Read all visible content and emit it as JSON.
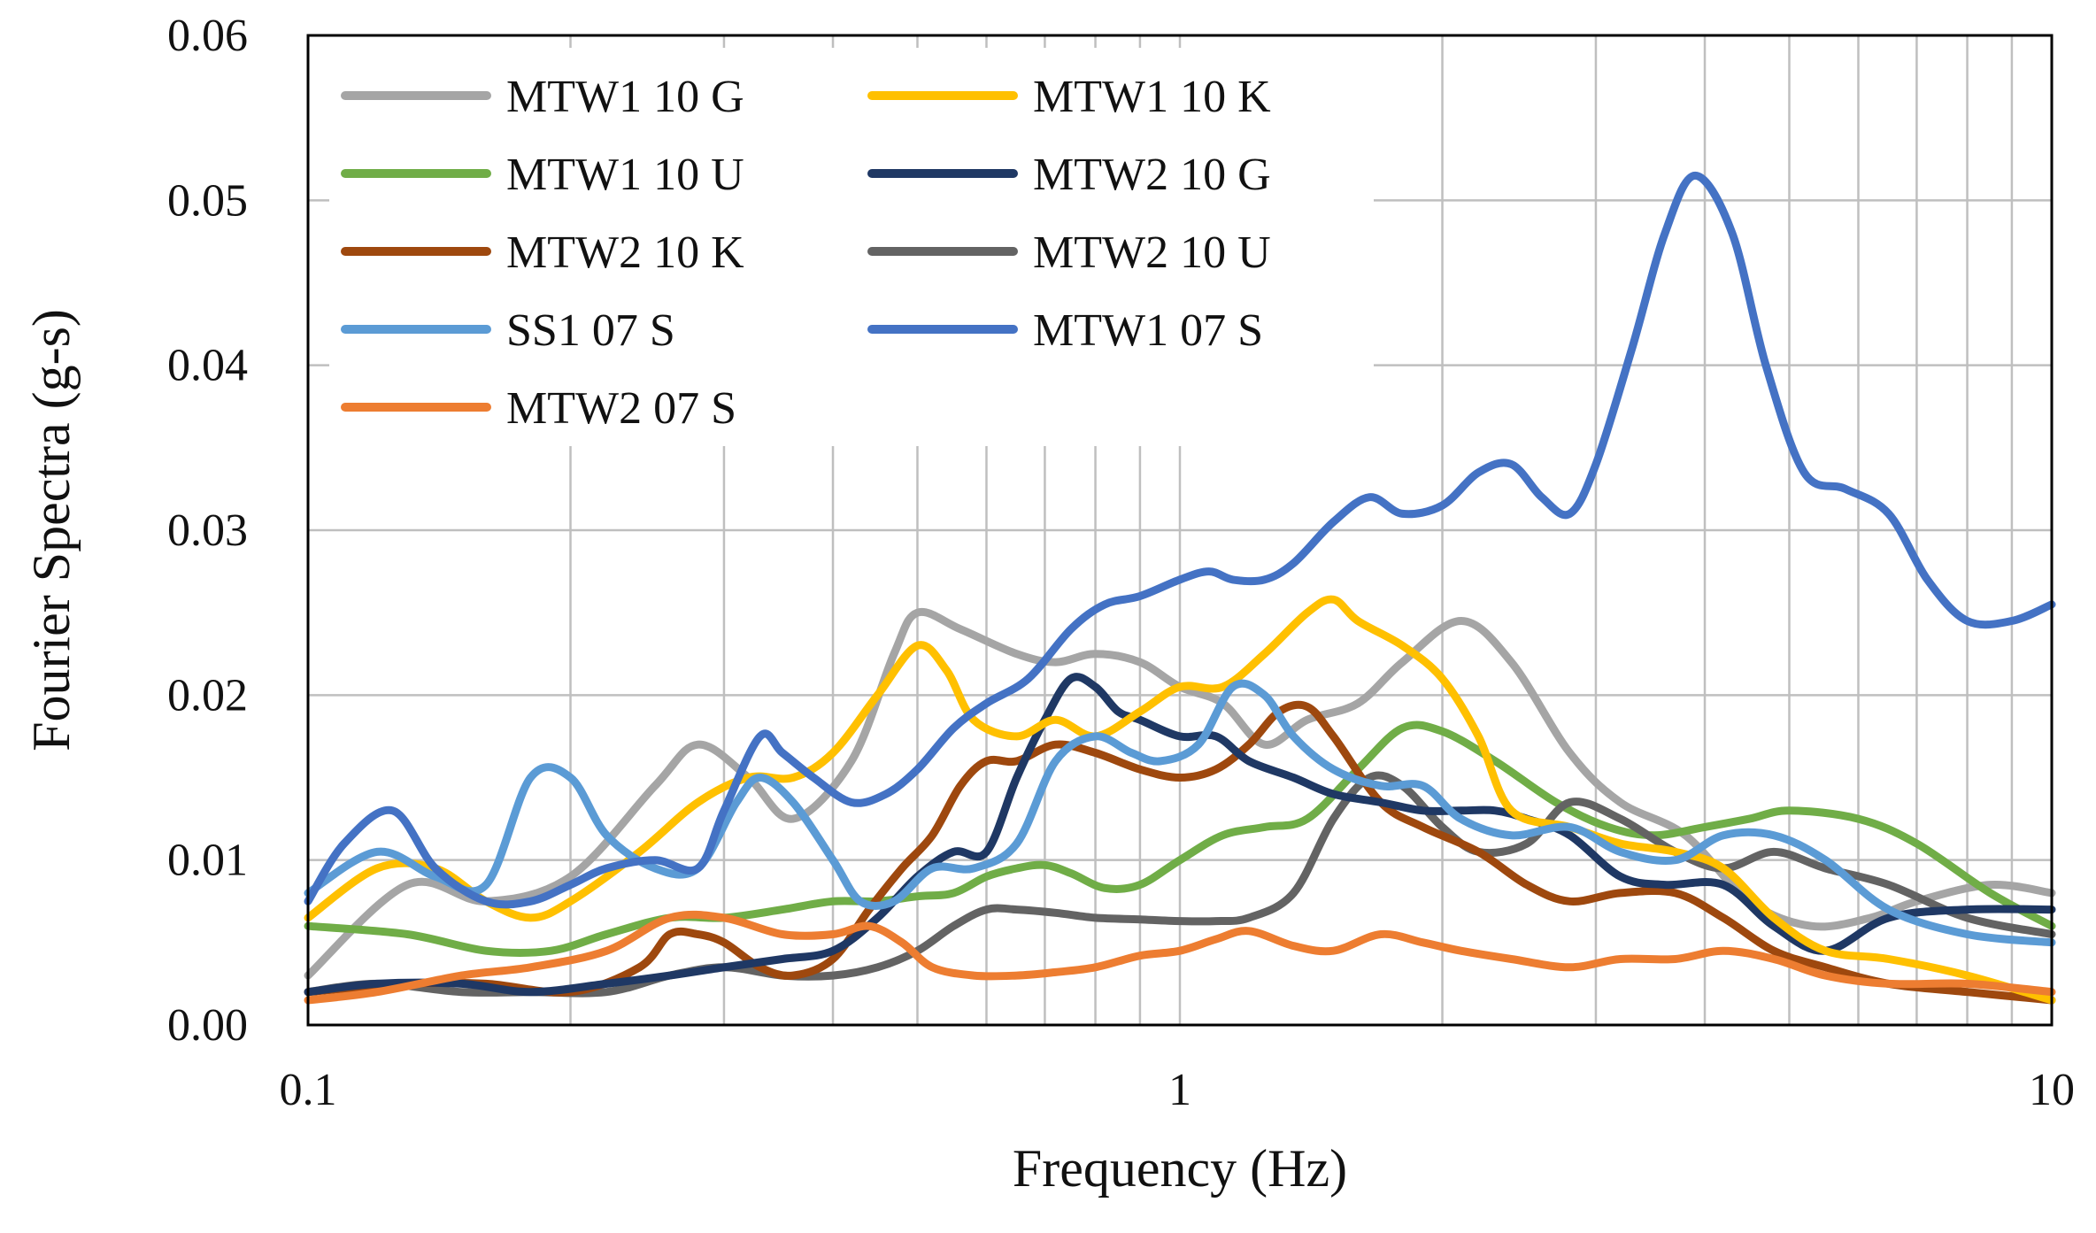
{
  "chart_data": {
    "type": "line",
    "x_scale": "log",
    "xlabel": "Frequency (Hz)",
    "ylabel": "Fourier Spectra (g-s)",
    "xlim": [
      0.1,
      10
    ],
    "ylim": [
      0,
      0.06
    ],
    "x_ticks": [
      {
        "value": 0.1,
        "label": "0.1"
      },
      {
        "value": 1,
        "label": "1"
      },
      {
        "value": 10,
        "label": "10"
      }
    ],
    "y_ticks": [
      {
        "value": 0,
        "label": "0.00"
      },
      {
        "value": 0.01,
        "label": "0.01"
      },
      {
        "value": 0.02,
        "label": "0.02"
      },
      {
        "value": 0.03,
        "label": "0.03"
      },
      {
        "value": 0.04,
        "label": "0.04"
      },
      {
        "value": 0.05,
        "label": "0.05"
      },
      {
        "value": 0.06,
        "label": "0.06"
      }
    ],
    "grid": true,
    "legend_position": "top-left",
    "series": [
      {
        "name": "MTW1 10 G",
        "color": "#A5A5A5",
        "x": [
          0.1,
          0.13,
          0.16,
          0.2,
          0.25,
          0.28,
          0.32,
          0.36,
          0.42,
          0.47,
          0.5,
          0.56,
          0.65,
          0.72,
          0.8,
          0.9,
          1,
          1.12,
          1.25,
          1.4,
          1.6,
          1.8,
          2.1,
          2.4,
          2.8,
          3.2,
          3.8,
          4.5,
          5.3,
          6.2,
          7,
          8.5,
          10
        ],
        "y": [
          0.003,
          0.0085,
          0.0075,
          0.009,
          0.0145,
          0.017,
          0.015,
          0.0125,
          0.016,
          0.0225,
          0.025,
          0.024,
          0.0225,
          0.022,
          0.0225,
          0.022,
          0.0205,
          0.0195,
          0.017,
          0.0185,
          0.0195,
          0.022,
          0.0245,
          0.022,
          0.0165,
          0.0135,
          0.0115,
          0.0075,
          0.006,
          0.0065,
          0.0075,
          0.0085,
          0.008
        ]
      },
      {
        "name": "MTW1 10 K",
        "color": "#FFC000",
        "x": [
          0.1,
          0.12,
          0.14,
          0.16,
          0.18,
          0.2,
          0.24,
          0.28,
          0.32,
          0.36,
          0.4,
          0.45,
          0.5,
          0.54,
          0.58,
          0.65,
          0.72,
          0.8,
          0.9,
          1,
          1.12,
          1.25,
          1.4,
          1.5,
          1.6,
          1.8,
          2,
          2.2,
          2.4,
          2.8,
          3.2,
          3.7,
          4.2,
          4.8,
          5.5,
          6.5,
          8,
          10
        ],
        "y": [
          0.0065,
          0.0095,
          0.0095,
          0.0075,
          0.0065,
          0.0075,
          0.0105,
          0.0135,
          0.015,
          0.015,
          0.0165,
          0.02,
          0.023,
          0.0215,
          0.0185,
          0.0175,
          0.0185,
          0.0175,
          0.019,
          0.0205,
          0.0205,
          0.0225,
          0.025,
          0.0258,
          0.0245,
          0.023,
          0.021,
          0.0175,
          0.013,
          0.012,
          0.011,
          0.0105,
          0.0095,
          0.0065,
          0.0045,
          0.004,
          0.003,
          0.0015
        ]
      },
      {
        "name": "MTW1 10 U",
        "color": "#70AD47",
        "x": [
          0.1,
          0.13,
          0.16,
          0.19,
          0.22,
          0.26,
          0.3,
          0.35,
          0.4,
          0.45,
          0.5,
          0.55,
          0.6,
          0.65,
          0.7,
          0.75,
          0.82,
          0.9,
          1,
          1.12,
          1.25,
          1.4,
          1.6,
          1.8,
          2,
          2.3,
          2.7,
          3.1,
          3.5,
          4,
          4.5,
          5,
          6,
          7,
          8.5,
          10
        ],
        "y": [
          0.006,
          0.0055,
          0.0045,
          0.0045,
          0.0055,
          0.0065,
          0.0065,
          0.007,
          0.0075,
          0.0075,
          0.0078,
          0.008,
          0.009,
          0.0095,
          0.0097,
          0.0092,
          0.0083,
          0.0085,
          0.01,
          0.0115,
          0.012,
          0.0125,
          0.0155,
          0.018,
          0.0178,
          0.016,
          0.0135,
          0.012,
          0.0115,
          0.012,
          0.0125,
          0.013,
          0.0125,
          0.011,
          0.008,
          0.006
        ]
      },
      {
        "name": "MTW2 10 G",
        "color": "#1F3864",
        "x": [
          0.1,
          0.12,
          0.15,
          0.18,
          0.22,
          0.26,
          0.3,
          0.35,
          0.4,
          0.45,
          0.5,
          0.55,
          0.6,
          0.65,
          0.7,
          0.75,
          0.8,
          0.85,
          0.9,
          1,
          1.1,
          1.2,
          1.35,
          1.5,
          1.7,
          1.9,
          2.1,
          2.3,
          2.5,
          2.8,
          3.2,
          3.6,
          4.2,
          4.8,
          5.5,
          6.5,
          8,
          10
        ],
        "y": [
          0.002,
          0.0025,
          0.0025,
          0.002,
          0.0025,
          0.003,
          0.0035,
          0.004,
          0.0045,
          0.0065,
          0.009,
          0.0105,
          0.0105,
          0.015,
          0.0185,
          0.021,
          0.0205,
          0.019,
          0.0185,
          0.0175,
          0.0175,
          0.016,
          0.015,
          0.014,
          0.0135,
          0.013,
          0.013,
          0.013,
          0.0125,
          0.0115,
          0.009,
          0.0085,
          0.0085,
          0.006,
          0.0045,
          0.0065,
          0.007,
          0.007
        ]
      },
      {
        "name": "MTW2 10 K",
        "color": "#9E480E",
        "x": [
          0.1,
          0.13,
          0.16,
          0.2,
          0.24,
          0.26,
          0.28,
          0.3,
          0.33,
          0.36,
          0.4,
          0.44,
          0.48,
          0.52,
          0.56,
          0.6,
          0.65,
          0.72,
          0.8,
          0.9,
          1,
          1.1,
          1.2,
          1.3,
          1.4,
          1.5,
          1.7,
          1.9,
          2.2,
          2.5,
          2.8,
          3.2,
          3.7,
          4.2,
          4.8,
          5.5,
          6.5,
          8,
          10
        ],
        "y": [
          0.002,
          0.0025,
          0.0025,
          0.002,
          0.0035,
          0.0055,
          0.0055,
          0.005,
          0.0035,
          0.003,
          0.004,
          0.007,
          0.0095,
          0.0115,
          0.0145,
          0.016,
          0.016,
          0.017,
          0.0165,
          0.0155,
          0.015,
          0.0155,
          0.017,
          0.019,
          0.0193,
          0.0175,
          0.0135,
          0.012,
          0.0105,
          0.0085,
          0.0075,
          0.008,
          0.008,
          0.0065,
          0.0045,
          0.0035,
          0.0025,
          0.002,
          0.0015
        ]
      },
      {
        "name": "MTW2 10 U",
        "color": "#636363",
        "x": [
          0.1,
          0.12,
          0.15,
          0.18,
          0.22,
          0.26,
          0.3,
          0.35,
          0.4,
          0.45,
          0.5,
          0.55,
          0.6,
          0.65,
          0.72,
          0.8,
          0.9,
          1,
          1.1,
          1.2,
          1.35,
          1.5,
          1.65,
          1.8,
          2,
          2.2,
          2.5,
          2.8,
          3.2,
          3.7,
          4.2,
          4.8,
          5.5,
          6.5,
          8,
          10
        ],
        "y": [
          0.002,
          0.0025,
          0.002,
          0.002,
          0.002,
          0.003,
          0.0035,
          0.003,
          0.003,
          0.0035,
          0.0045,
          0.006,
          0.007,
          0.007,
          0.0068,
          0.0065,
          0.0064,
          0.0063,
          0.0063,
          0.0065,
          0.008,
          0.0125,
          0.015,
          0.0145,
          0.012,
          0.0105,
          0.011,
          0.0135,
          0.0125,
          0.0105,
          0.0095,
          0.0105,
          0.0095,
          0.0085,
          0.0065,
          0.0055
        ]
      },
      {
        "name": "SS1 07 S",
        "color": "#5B9BD5",
        "x": [
          0.1,
          0.12,
          0.14,
          0.16,
          0.18,
          0.2,
          0.22,
          0.25,
          0.28,
          0.31,
          0.33,
          0.36,
          0.4,
          0.43,
          0.47,
          0.52,
          0.58,
          0.65,
          0.72,
          0.8,
          0.88,
          0.95,
          1.05,
          1.15,
          1.25,
          1.35,
          1.5,
          1.7,
          1.9,
          2.1,
          2.4,
          2.8,
          3.2,
          3.7,
          4.2,
          4.8,
          5.5,
          6.5,
          8,
          10
        ],
        "y": [
          0.008,
          0.0105,
          0.009,
          0.0085,
          0.015,
          0.015,
          0.0115,
          0.0095,
          0.0095,
          0.0135,
          0.015,
          0.0135,
          0.01,
          0.0075,
          0.0075,
          0.0095,
          0.0095,
          0.011,
          0.016,
          0.0175,
          0.0165,
          0.016,
          0.017,
          0.0205,
          0.02,
          0.0175,
          0.0155,
          0.0145,
          0.0145,
          0.0125,
          0.0115,
          0.012,
          0.0105,
          0.01,
          0.0115,
          0.0115,
          0.01,
          0.007,
          0.0055,
          0.005
        ]
      },
      {
        "name": "MTW1 07 S",
        "color": "#4472C4",
        "x": [
          0.1,
          0.11,
          0.125,
          0.14,
          0.16,
          0.18,
          0.2,
          0.22,
          0.25,
          0.28,
          0.3,
          0.33,
          0.35,
          0.38,
          0.42,
          0.46,
          0.5,
          0.55,
          0.6,
          0.67,
          0.75,
          0.82,
          0.9,
          1,
          1.08,
          1.15,
          1.25,
          1.35,
          1.5,
          1.65,
          1.8,
          2,
          2.2,
          2.4,
          2.6,
          2.8,
          3,
          3.3,
          3.6,
          3.9,
          4.3,
          4.7,
          5.2,
          5.8,
          6.5,
          7.2,
          8,
          9,
          10
        ],
        "y": [
          0.0075,
          0.011,
          0.013,
          0.0095,
          0.0075,
          0.0075,
          0.0085,
          0.0095,
          0.01,
          0.0095,
          0.013,
          0.0175,
          0.0165,
          0.015,
          0.0135,
          0.014,
          0.0155,
          0.018,
          0.0195,
          0.021,
          0.024,
          0.0255,
          0.026,
          0.027,
          0.0275,
          0.027,
          0.027,
          0.028,
          0.0305,
          0.032,
          0.031,
          0.0315,
          0.0335,
          0.034,
          0.032,
          0.031,
          0.034,
          0.041,
          0.048,
          0.0515,
          0.048,
          0.04,
          0.0335,
          0.0325,
          0.031,
          0.027,
          0.0245,
          0.0245,
          0.0255
        ]
      },
      {
        "name": "MTW2 07 S",
        "color": "#ED7D31",
        "x": [
          0.1,
          0.12,
          0.15,
          0.18,
          0.22,
          0.26,
          0.3,
          0.35,
          0.4,
          0.44,
          0.48,
          0.52,
          0.58,
          0.65,
          0.72,
          0.8,
          0.9,
          1,
          1.1,
          1.2,
          1.35,
          1.5,
          1.7,
          1.9,
          2.1,
          2.4,
          2.8,
          3.2,
          3.7,
          4.2,
          4.8,
          5.5,
          6.5,
          8,
          10
        ],
        "y": [
          0.0015,
          0.002,
          0.003,
          0.0035,
          0.0045,
          0.0065,
          0.0065,
          0.0055,
          0.0055,
          0.006,
          0.005,
          0.0035,
          0.003,
          0.003,
          0.0032,
          0.0035,
          0.0042,
          0.0045,
          0.0052,
          0.0057,
          0.0048,
          0.0045,
          0.0055,
          0.005,
          0.0045,
          0.004,
          0.0035,
          0.004,
          0.004,
          0.0045,
          0.004,
          0.003,
          0.0025,
          0.0025,
          0.002
        ]
      }
    ]
  }
}
